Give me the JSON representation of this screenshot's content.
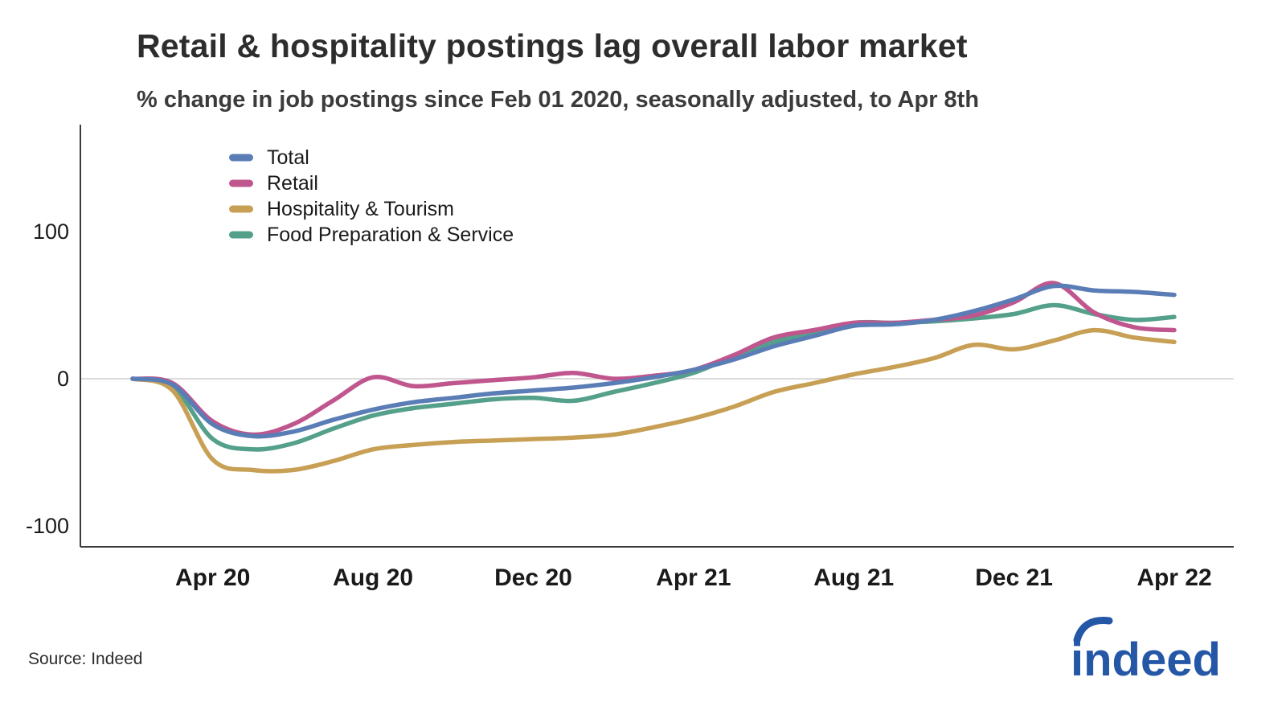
{
  "chart_data": {
    "type": "line",
    "title": "Retail & hospitality postings lag overall labor market",
    "subtitle": "% change in job postings since Feb 01 2020, seasonally adjusted, to Apr 8th",
    "xlabel": "",
    "ylabel": "% change in job postings",
    "ylim": [
      -120,
      170
    ],
    "grid": "zero-line-only",
    "legend_position": "top-left-inside",
    "x": [
      "Feb 20",
      "Mar 20",
      "Apr 20",
      "May 20",
      "Jun 20",
      "Jul 20",
      "Aug 20",
      "Sep 20",
      "Oct 20",
      "Nov 20",
      "Dec 20",
      "Jan 21",
      "Feb 21",
      "Mar 21",
      "Apr 21",
      "May 21",
      "Jun 21",
      "Jul 21",
      "Aug 21",
      "Sep 21",
      "Oct 21",
      "Nov 21",
      "Dec 21",
      "Jan 22",
      "Feb 22",
      "Mar 22",
      "Apr 22"
    ],
    "x_tick_labels": [
      "Apr 20",
      "Aug 20",
      "Dec 20",
      "Apr 21",
      "Aug 21",
      "Dec 21",
      "Apr 22"
    ],
    "x_tick_indices": [
      2,
      6,
      10,
      14,
      18,
      22,
      26
    ],
    "y_ticks": [
      100,
      0,
      -100
    ],
    "series": [
      {
        "name": "Total",
        "color": "#5a7db6",
        "values": [
          0,
          -4,
          -31,
          -39,
          -36,
          -28,
          -21,
          -16,
          -13,
          -10,
          -8,
          -6,
          -3,
          1,
          6,
          13,
          22,
          29,
          36,
          37,
          40,
          46,
          54,
          63,
          60,
          59,
          57
        ]
      },
      {
        "name": "Retail",
        "color": "#c0568e",
        "values": [
          0,
          -3,
          -29,
          -38,
          -31,
          -15,
          1,
          -5,
          -3,
          -1,
          1,
          4,
          0,
          2,
          6,
          16,
          28,
          33,
          38,
          38,
          40,
          43,
          52,
          65,
          45,
          35,
          33
        ]
      },
      {
        "name": "Hospitality & Tourism",
        "color": "#c7a055",
        "values": [
          0,
          -8,
          -55,
          -62,
          -62,
          -56,
          -48,
          -45,
          -43,
          -42,
          -41,
          -40,
          -38,
          -33,
          -27,
          -19,
          -9,
          -3,
          3,
          8,
          14,
          23,
          20,
          26,
          33,
          28,
          25
        ]
      },
      {
        "name": "Food Preparation & Service",
        "color": "#55a08b",
        "values": [
          0,
          -5,
          -41,
          -48,
          -44,
          -34,
          -25,
          -20,
          -17,
          -14,
          -13,
          -15,
          -9,
          -3,
          4,
          15,
          25,
          31,
          38,
          38,
          39,
          41,
          44,
          50,
          44,
          40,
          42
        ]
      }
    ],
    "source": "Source: Indeed",
    "logo_text": "indeed",
    "logo_color": "#2557a7"
  }
}
